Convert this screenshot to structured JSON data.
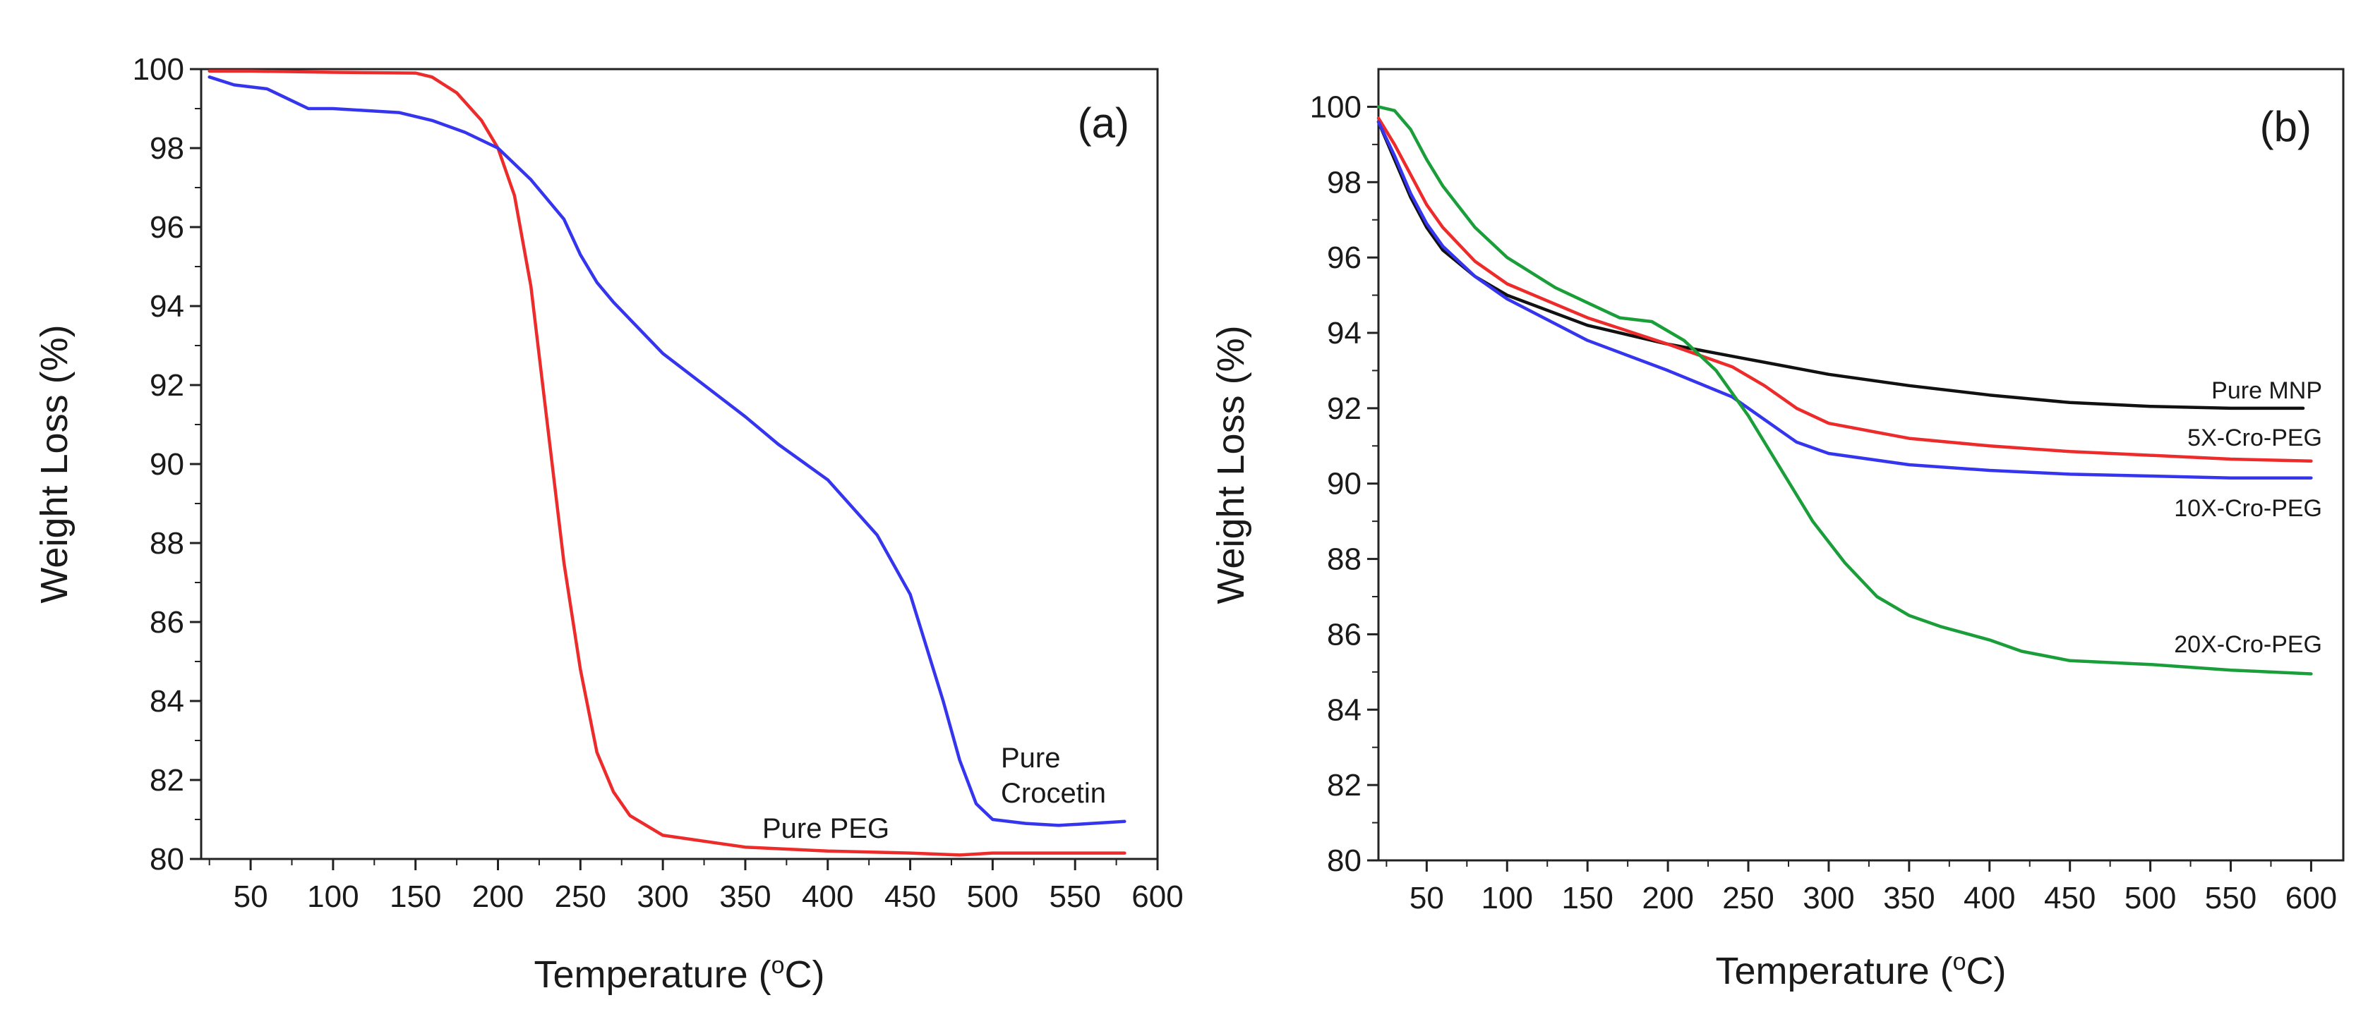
{
  "chart_data": [
    {
      "type": "line",
      "panel": "(a)",
      "xlabel": "Temperature",
      "xunit_sup": "o",
      "xunit": "C",
      "ylabel": "Weight Loss (%)",
      "xlim": [
        20,
        600
      ],
      "ylim": [
        80,
        100
      ],
      "xticks": [
        50,
        100,
        150,
        200,
        250,
        300,
        350,
        400,
        450,
        500,
        550,
        600
      ],
      "yticks": [
        80,
        82,
        84,
        86,
        88,
        90,
        92,
        94,
        96,
        98,
        100
      ],
      "series": [
        {
          "name": "Pure PEG",
          "label_lines": [
            "Pure PEG"
          ],
          "color": "#ee2b2b",
          "x": [
            25,
            50,
            100,
            150,
            160,
            175,
            190,
            200,
            210,
            220,
            230,
            240,
            250,
            260,
            270,
            280,
            300,
            350,
            400,
            450,
            480,
            500,
            580
          ],
          "y": [
            99.95,
            99.95,
            99.92,
            99.9,
            99.8,
            99.4,
            98.7,
            98.0,
            96.8,
            94.5,
            91.0,
            87.5,
            84.8,
            82.7,
            81.7,
            81.1,
            80.6,
            80.3,
            80.2,
            80.15,
            80.1,
            80.15,
            80.15
          ]
        },
        {
          "name": "Pure Crocetin",
          "label_lines": [
            "Pure",
            "Crocetin"
          ],
          "color": "#3535f0",
          "x": [
            25,
            40,
            60,
            70,
            85,
            100,
            140,
            160,
            180,
            200,
            210,
            220,
            240,
            250,
            260,
            270,
            300,
            350,
            370,
            400,
            430,
            450,
            470,
            480,
            490,
            500,
            520,
            540,
            560,
            580
          ],
          "y": [
            99.8,
            99.6,
            99.5,
            99.3,
            99.0,
            99.0,
            98.9,
            98.7,
            98.4,
            98.0,
            97.6,
            97.2,
            96.2,
            95.3,
            94.6,
            94.1,
            92.8,
            91.2,
            90.5,
            89.6,
            88.2,
            86.7,
            84.0,
            82.5,
            81.4,
            81.0,
            80.9,
            80.85,
            80.9,
            80.95
          ]
        }
      ]
    },
    {
      "type": "line",
      "panel": "(b)",
      "xlabel": "Temperature",
      "xunit_sup": "o",
      "xunit": "C",
      "ylabel": "Weight Loss (%)",
      "xlim": [
        20,
        620
      ],
      "ylim": [
        80,
        101
      ],
      "xticks": [
        50,
        100,
        150,
        200,
        250,
        300,
        350,
        400,
        450,
        500,
        550,
        600
      ],
      "yticks": [
        80,
        82,
        84,
        86,
        88,
        90,
        92,
        94,
        96,
        98,
        100
      ],
      "series": [
        {
          "name": "Pure MNP",
          "label_lines": [
            "Pure MNP"
          ],
          "color": "#111111",
          "x": [
            20,
            30,
            40,
            50,
            60,
            80,
            100,
            150,
            200,
            250,
            300,
            350,
            400,
            450,
            500,
            550,
            595
          ],
          "y": [
            99.6,
            98.6,
            97.6,
            96.8,
            96.2,
            95.5,
            95.0,
            94.2,
            93.7,
            93.3,
            92.9,
            92.6,
            92.35,
            92.15,
            92.05,
            92.0,
            92.0
          ]
        },
        {
          "name": "5X-Cro-PEG",
          "label_lines": [
            "5X-Cro-PEG"
          ],
          "color": "#ee2b2b",
          "x": [
            20,
            30,
            40,
            50,
            60,
            80,
            100,
            150,
            200,
            240,
            260,
            280,
            300,
            350,
            400,
            450,
            500,
            550,
            600
          ],
          "y": [
            99.7,
            99.0,
            98.2,
            97.4,
            96.8,
            95.9,
            95.3,
            94.4,
            93.7,
            93.1,
            92.6,
            92.0,
            91.6,
            91.2,
            91.0,
            90.85,
            90.75,
            90.65,
            90.6
          ]
        },
        {
          "name": "10X-Cro-PEG",
          "label_lines": [
            "10X-Cro-PEG"
          ],
          "color": "#3535f0",
          "x": [
            20,
            30,
            40,
            50,
            60,
            80,
            100,
            150,
            200,
            240,
            260,
            280,
            300,
            350,
            400,
            450,
            500,
            550,
            600
          ],
          "y": [
            99.6,
            98.7,
            97.7,
            96.9,
            96.3,
            95.5,
            94.9,
            93.8,
            93.0,
            92.3,
            91.7,
            91.1,
            90.8,
            90.5,
            90.35,
            90.25,
            90.2,
            90.15,
            90.15
          ]
        },
        {
          "name": "20X-Cro-PEG",
          "label_lines": [
            "20X-Cro-PEG"
          ],
          "color": "#1a9e3a",
          "x": [
            20,
            30,
            40,
            50,
            60,
            80,
            100,
            130,
            150,
            170,
            190,
            210,
            230,
            250,
            270,
            290,
            310,
            330,
            350,
            370,
            400,
            420,
            450,
            500,
            550,
            600
          ],
          "y": [
            100.0,
            99.9,
            99.4,
            98.6,
            97.9,
            96.8,
            96.0,
            95.2,
            94.8,
            94.4,
            94.3,
            93.8,
            93.0,
            91.8,
            90.4,
            89.0,
            87.9,
            87.0,
            86.5,
            86.2,
            85.85,
            85.55,
            85.3,
            85.2,
            85.05,
            84.95
          ]
        }
      ]
    }
  ]
}
